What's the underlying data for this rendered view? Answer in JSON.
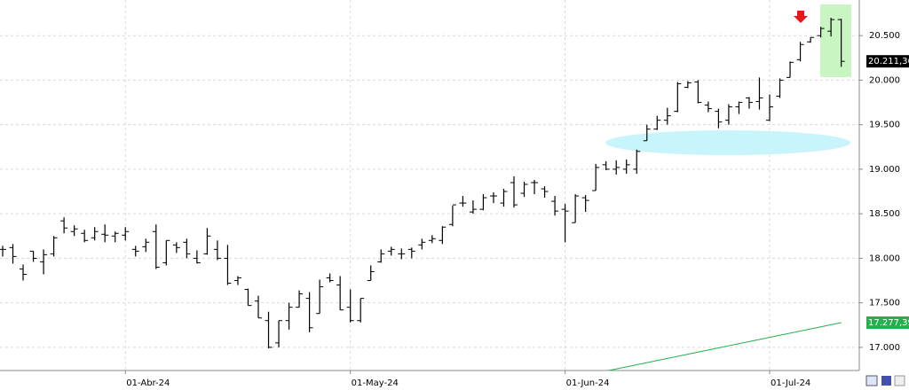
{
  "chart_data": {
    "type": "ohlc",
    "categories": [
      null,
      null,
      null,
      null,
      null,
      null,
      null,
      null,
      null,
      null,
      null,
      null,
      "01-Abr-24",
      null,
      null,
      null,
      null,
      null,
      null,
      null,
      null,
      null,
      null,
      null,
      null,
      null,
      null,
      null,
      null,
      null,
      null,
      null,
      null,
      null,
      "01-May-24",
      null,
      null,
      null,
      null,
      null,
      null,
      null,
      null,
      null,
      null,
      null,
      null,
      null,
      null,
      null,
      null,
      null,
      null,
      null,
      null,
      "01-Jun-24",
      null,
      null,
      null,
      null,
      null,
      null,
      null,
      null,
      null,
      null,
      null,
      null,
      null,
      null,
      null,
      null,
      null,
      null,
      null,
      "01-Jul-24",
      null,
      null,
      null,
      null,
      null,
      null,
      null
    ],
    "bars": {
      "color": "#000000",
      "open": [
        18100,
        18120,
        17880,
        18080,
        17960,
        18050,
        18420,
        18300,
        18280,
        18230,
        18270,
        18250,
        18260,
        18100,
        18130,
        18300,
        17950,
        18150,
        18180,
        18000,
        18050,
        18100,
        18000,
        17750,
        17650,
        17520,
        17300,
        17050,
        17300,
        17450,
        17550,
        17380,
        17780,
        17700,
        17450,
        17300,
        17750,
        17960,
        18080,
        18050,
        18100,
        18150,
        18200,
        18200,
        18380,
        18620,
        18520,
        18550,
        18700,
        18620,
        18850,
        18730,
        18850,
        18780,
        18640,
        18550,
        18400,
        18680,
        18760,
        19050,
        19000,
        19000,
        19000,
        19320,
        19450,
        19550,
        19650,
        19920,
        19980,
        19720,
        19650,
        19550,
        19700,
        19800,
        19760,
        19550,
        19820,
        20030,
        20230,
        20430,
        20500,
        20550,
        20680
      ],
      "high": [
        18140,
        18160,
        17930,
        18080,
        18100,
        18250,
        18460,
        18370,
        18320,
        18350,
        18380,
        18300,
        18350,
        18140,
        18220,
        18380,
        18200,
        18180,
        18220,
        18090,
        18340,
        18200,
        18150,
        17800,
        17660,
        17580,
        17400,
        17300,
        17500,
        17640,
        17620,
        17760,
        17830,
        17800,
        17650,
        17550,
        17920,
        18100,
        18130,
        18110,
        18120,
        18220,
        18260,
        18360,
        18590,
        18700,
        18650,
        18720,
        18740,
        18780,
        18920,
        18860,
        18880,
        18810,
        18700,
        18610,
        18720,
        18710,
        19060,
        19090,
        19100,
        19110,
        19220,
        19500,
        19600,
        19690,
        19980,
        19990,
        20000,
        19760,
        19680,
        19730,
        19760,
        19810,
        20030,
        19840,
        20020,
        20210,
        20430,
        20480,
        20600,
        20700,
        20690
      ],
      "low": [
        18020,
        17940,
        17750,
        17960,
        17820,
        18020,
        18280,
        18250,
        18180,
        18200,
        18180,
        18180,
        18200,
        18020,
        18070,
        17880,
        17920,
        18060,
        18000,
        17940,
        18040,
        17980,
        17700,
        17700,
        17470,
        17330,
        16990,
        17000,
        17200,
        17450,
        17170,
        17380,
        17730,
        17420,
        17280,
        17280,
        17750,
        17950,
        18030,
        17990,
        18000,
        18100,
        18170,
        18160,
        18360,
        18580,
        18500,
        18540,
        18620,
        18580,
        18570,
        18690,
        18720,
        18680,
        18480,
        18180,
        18400,
        18520,
        18760,
        18990,
        18940,
        18950,
        18950,
        19320,
        19440,
        19500,
        19640,
        19910,
        19740,
        19640,
        19460,
        19500,
        19620,
        19680,
        19670,
        19540,
        19800,
        20030,
        20210,
        20420,
        20480,
        20490,
        20150
      ],
      "close": [
        18100,
        18020,
        17820,
        18000,
        18040,
        18230,
        18340,
        18330,
        18200,
        18300,
        18260,
        18280,
        18300,
        18080,
        18180,
        17900,
        18200,
        18120,
        18050,
        17950,
        18250,
        18000,
        17720,
        17780,
        17470,
        17330,
        17000,
        17300,
        17450,
        17600,
        17220,
        17680,
        17750,
        17420,
        17300,
        17550,
        17850,
        18050,
        18100,
        18050,
        18080,
        18180,
        18220,
        18350,
        18600,
        18620,
        18550,
        18680,
        18700,
        18750,
        18600,
        18830,
        18850,
        18750,
        18530,
        18530,
        18700,
        18650,
        19020,
        19000,
        19020,
        19050,
        19200,
        19450,
        19550,
        19600,
        19960,
        19970,
        19750,
        19680,
        19530,
        19700,
        19750,
        19750,
        19800,
        19700,
        20000,
        20200,
        20400,
        20480,
        20580,
        20680,
        20211.36
      ],
      "value_labels": [
        null,
        null,
        null,
        null,
        null,
        null,
        null,
        null,
        null,
        null,
        null,
        null,
        null,
        null,
        null,
        null,
        null,
        null,
        null,
        null,
        null,
        null,
        null,
        null,
        null,
        null,
        null,
        null,
        null,
        null,
        null,
        null,
        null,
        null,
        null,
        null,
        null,
        null,
        null,
        null,
        null,
        null,
        null,
        null,
        null,
        null,
        null,
        null,
        null,
        null,
        null,
        null,
        null,
        null,
        null,
        null,
        null,
        null,
        null,
        null,
        null,
        null,
        null,
        null,
        null,
        null,
        null,
        null,
        null,
        null,
        null,
        null,
        null,
        null,
        null,
        null,
        null,
        null,
        null,
        null,
        null,
        null,
        "20.211,36"
      ]
    },
    "line": {
      "color": "#22b14c",
      "values": [
        null,
        null,
        null,
        null,
        null,
        null,
        null,
        null,
        null,
        null,
        null,
        null,
        null,
        null,
        null,
        null,
        null,
        null,
        null,
        null,
        null,
        null,
        null,
        null,
        null,
        null,
        null,
        null,
        null,
        null,
        null,
        null,
        null,
        null,
        null,
        null,
        null,
        null,
        null,
        null,
        null,
        null,
        null,
        null,
        null,
        null,
        null,
        null,
        null,
        null,
        null,
        null,
        null,
        null,
        null,
        null,
        null,
        null,
        16710,
        16734,
        16757,
        16781,
        16805,
        16828,
        16852,
        16876,
        16899,
        16923,
        16947,
        16970,
        16994,
        17018,
        17041,
        17065,
        17088,
        17112,
        17136,
        17159,
        17183,
        17207,
        17230,
        17254,
        17277.39
      ],
      "value_labels": [
        null,
        null,
        null,
        null,
        null,
        null,
        null,
        null,
        null,
        null,
        null,
        null,
        null,
        null,
        null,
        null,
        null,
        null,
        null,
        null,
        null,
        null,
        null,
        null,
        null,
        null,
        null,
        null,
        null,
        null,
        null,
        null,
        null,
        null,
        null,
        null,
        null,
        null,
        null,
        null,
        null,
        null,
        null,
        null,
        null,
        null,
        null,
        null,
        null,
        null,
        null,
        null,
        null,
        null,
        null,
        null,
        null,
        null,
        null,
        null,
        null,
        null,
        null,
        null,
        null,
        null,
        null,
        null,
        null,
        null,
        null,
        null,
        null,
        null,
        null,
        null,
        null,
        null,
        null,
        null,
        null,
        null,
        "17.277,39"
      ]
    },
    "ylim": [
      16750,
      20900
    ],
    "yticks": [
      {
        "value": 17000,
        "label": "17.000"
      },
      {
        "value": 17500,
        "label": "17.500"
      },
      {
        "value": 18000,
        "label": "18.000"
      },
      {
        "value": 18500,
        "label": "18.500"
      },
      {
        "value": 19000,
        "label": "19.000"
      },
      {
        "value": 19500,
        "label": "19.500"
      },
      {
        "value": 20000,
        "label": "20.000"
      },
      {
        "value": 20500,
        "label": "20.500"
      }
    ],
    "grid": true
  }
}
